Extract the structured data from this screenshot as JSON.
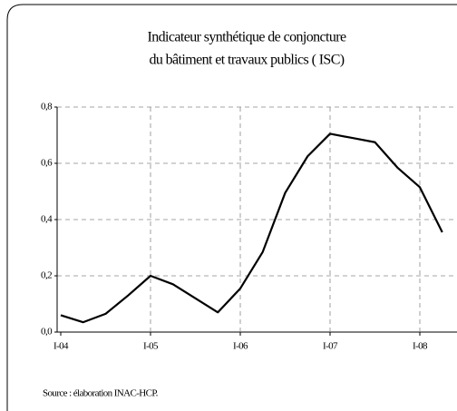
{
  "chart_data": {
    "type": "line",
    "title": [
      "Indicateur synthétique de conjoncture",
      "du bâtiment et travaux publics ( ISC)"
    ],
    "categories": [
      "I-04",
      null,
      null,
      null,
      "I-05",
      null,
      null,
      null,
      "I-06",
      null,
      null,
      null,
      "I-07",
      null,
      null,
      null,
      "I-08",
      null
    ],
    "series": [
      {
        "name": "ISC",
        "color": "#000000",
        "values": [
          0.06,
          0.035,
          0.065,
          0.13,
          0.2,
          0.17,
          0.12,
          0.07,
          0.155,
          0.285,
          0.495,
          0.625,
          0.705,
          0.69,
          0.675,
          0.585,
          0.515,
          0.355
        ]
      }
    ],
    "ylim": [
      0,
      0.8
    ],
    "yticks": [
      {
        "value": 0,
        "label": "0,0"
      },
      {
        "value": 0.2,
        "label": "0,2"
      },
      {
        "value": 0.4,
        "label": "0,4"
      },
      {
        "value": 0.6,
        "label": "0,6"
      },
      {
        "value": 0.8,
        "label": "0,8"
      }
    ],
    "grid": true,
    "source": "Source : élaboration INAC-HCP."
  }
}
